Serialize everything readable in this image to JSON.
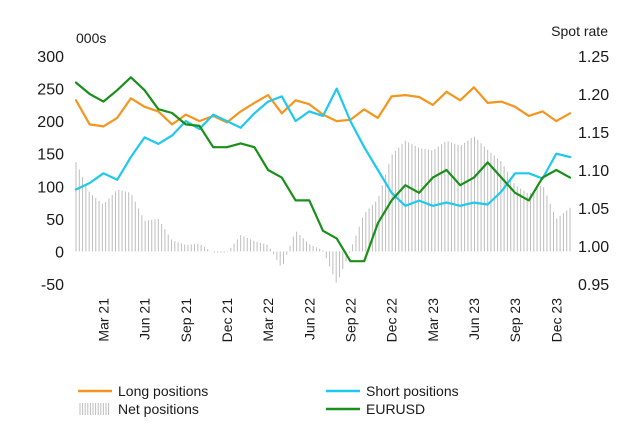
{
  "chart_data": {
    "type": "line",
    "left_axis_unit": "000s",
    "right_axis_unit": "Spot rate",
    "left_ylim": [
      -50,
      300
    ],
    "left_ticks": [
      "300",
      "250",
      "200",
      "150",
      "100",
      "50",
      "0",
      "-50"
    ],
    "right_ylim": [
      0.95,
      1.25
    ],
    "right_ticks": [
      "1.25",
      "1.20",
      "1.15",
      "1.10",
      "1.05",
      "1.00",
      "0.95"
    ],
    "x_range": [
      "2021-01",
      "2024-01"
    ],
    "x_ticks": [
      "Mar 21",
      "Jun 21",
      "Sep 21",
      "Dec 21",
      "Mar 22",
      "Jun 22",
      "Sep 22",
      "Dec 22",
      "Mar 23",
      "Jun 23",
      "Sep 23",
      "Dec 23"
    ],
    "legend_position": "bottom",
    "series": [
      {
        "name": "Long positions",
        "axis": "left",
        "color": "#f4961e",
        "dates": [
          "2021-01",
          "2021-02",
          "2021-03",
          "2021-04",
          "2021-05",
          "2021-06",
          "2021-07",
          "2021-08",
          "2021-09",
          "2021-10",
          "2021-11",
          "2021-12",
          "2022-01",
          "2022-02",
          "2022-03",
          "2022-04",
          "2022-05",
          "2022-06",
          "2022-07",
          "2022-08",
          "2022-09",
          "2022-10",
          "2022-11",
          "2022-12",
          "2023-01",
          "2023-02",
          "2023-03",
          "2023-04",
          "2023-05",
          "2023-06",
          "2023-07",
          "2023-08",
          "2023-09",
          "2023-10",
          "2023-11",
          "2023-12",
          "2024-01"
        ],
        "values": [
          232,
          195,
          192,
          205,
          235,
          222,
          215,
          195,
          210,
          200,
          208,
          198,
          215,
          228,
          240,
          212,
          232,
          226,
          210,
          200,
          202,
          218,
          205,
          238,
          240,
          237,
          225,
          245,
          232,
          252,
          228,
          230,
          222,
          208,
          215,
          200,
          212
        ]
      },
      {
        "name": "Short positions",
        "axis": "left",
        "color": "#1ec8ef",
        "dates": [
          "2021-01",
          "2021-02",
          "2021-03",
          "2021-04",
          "2021-05",
          "2021-06",
          "2021-07",
          "2021-08",
          "2021-09",
          "2021-10",
          "2021-11",
          "2021-12",
          "2022-01",
          "2022-02",
          "2022-03",
          "2022-04",
          "2022-05",
          "2022-06",
          "2022-07",
          "2022-08",
          "2022-09",
          "2022-10",
          "2022-11",
          "2022-12",
          "2023-01",
          "2023-02",
          "2023-03",
          "2023-04",
          "2023-05",
          "2023-06",
          "2023-07",
          "2023-08",
          "2023-09",
          "2023-10",
          "2023-11",
          "2023-12",
          "2024-01"
        ],
        "values": [
          95,
          105,
          120,
          110,
          145,
          175,
          165,
          178,
          200,
          188,
          210,
          200,
          190,
          212,
          230,
          238,
          200,
          215,
          208,
          250,
          200,
          160,
          125,
          90,
          70,
          78,
          70,
          75,
          70,
          75,
          72,
          92,
          120,
          120,
          112,
          150,
          145
        ]
      },
      {
        "name": "Net positions",
        "axis": "left",
        "color": "#bdbdbd",
        "dates": [
          "2021-01",
          "2021-02",
          "2021-03",
          "2021-04",
          "2021-05",
          "2021-06",
          "2021-07",
          "2021-08",
          "2021-09",
          "2021-10",
          "2021-11",
          "2021-12",
          "2022-01",
          "2022-02",
          "2022-03",
          "2022-04",
          "2022-05",
          "2022-06",
          "2022-07",
          "2022-08",
          "2022-09",
          "2022-10",
          "2022-11",
          "2022-12",
          "2023-01",
          "2023-02",
          "2023-03",
          "2023-04",
          "2023-05",
          "2023-06",
          "2023-07",
          "2023-08",
          "2023-09",
          "2023-10",
          "2023-11",
          "2023-12",
          "2024-01"
        ],
        "values": [
          137,
          90,
          72,
          95,
          90,
          47,
          50,
          17,
          10,
          12,
          -2,
          -2,
          25,
          16,
          10,
          -26,
          32,
          11,
          2,
          -50,
          2,
          58,
          80,
          148,
          170,
          159,
          155,
          170,
          162,
          177,
          156,
          138,
          102,
          88,
          103,
          50,
          67
        ]
      },
      {
        "name": "EURUSD",
        "axis": "right",
        "color": "#1a8f1a",
        "dates": [
          "2021-01",
          "2021-02",
          "2021-03",
          "2021-04",
          "2021-05",
          "2021-06",
          "2021-07",
          "2021-08",
          "2021-09",
          "2021-10",
          "2021-11",
          "2021-12",
          "2022-01",
          "2022-02",
          "2022-03",
          "2022-04",
          "2022-05",
          "2022-06",
          "2022-07",
          "2022-08",
          "2022-09",
          "2022-10",
          "2022-11",
          "2022-12",
          "2023-01",
          "2023-02",
          "2023-03",
          "2023-04",
          "2023-05",
          "2023-06",
          "2023-07",
          "2023-08",
          "2023-09",
          "2023-10",
          "2023-11",
          "2023-12",
          "2024-01"
        ],
        "values": [
          1.215,
          1.2,
          1.19,
          1.205,
          1.222,
          1.205,
          1.18,
          1.175,
          1.16,
          1.158,
          1.13,
          1.13,
          1.135,
          1.13,
          1.1,
          1.09,
          1.06,
          1.06,
          1.02,
          1.01,
          0.98,
          0.98,
          1.03,
          1.06,
          1.08,
          1.07,
          1.09,
          1.1,
          1.08,
          1.09,
          1.11,
          1.09,
          1.07,
          1.06,
          1.09,
          1.1,
          1.09
        ]
      }
    ]
  }
}
